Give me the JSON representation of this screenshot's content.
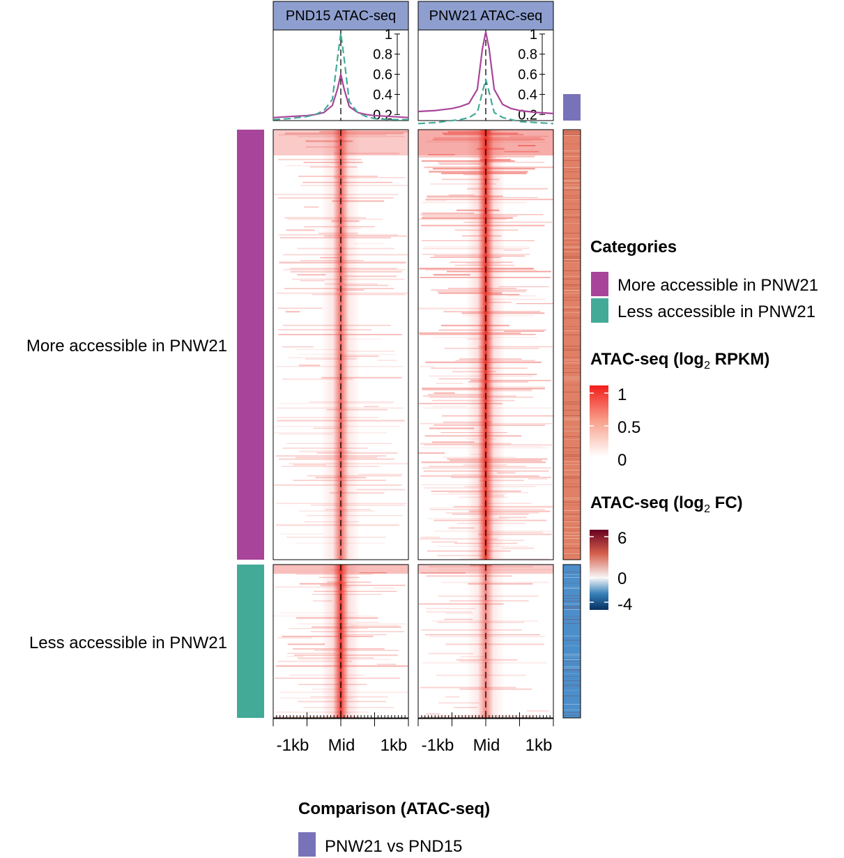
{
  "panels": [
    {
      "title": "PND15 ATAC-seq"
    },
    {
      "title": "PNW21 ATAC-seq"
    }
  ],
  "row_labels": [
    "More accessible in PNW21",
    "Less accessible in PNW21"
  ],
  "x_ticks": [
    "-1kb",
    "Mid",
    "1kb"
  ],
  "legends": {
    "categories": {
      "title": "Categories",
      "items": [
        {
          "label": "More accessible in PNW21",
          "color": "#a8449a"
        },
        {
          "label": "Less accessible in PNW21",
          "color": "#43aa98"
        }
      ]
    },
    "rpkm": {
      "title_main": "ATAC-seq (log",
      "title_sub": "2",
      "title_end": " RPKM)",
      "ticks": [
        "1",
        "0.5",
        "0"
      ]
    },
    "fc": {
      "title_main": "ATAC-seq (log",
      "title_sub": "2",
      "title_end": " FC)",
      "ticks": [
        "6",
        "0",
        "-4"
      ]
    },
    "comparison": {
      "title": "Comparison (ATAC-seq)",
      "items": [
        {
          "label": "PNW21 vs PND15",
          "color": "#7873b8"
        }
      ]
    }
  },
  "colors": {
    "strip_bg": "#8e9fcf",
    "more": "#a8449a",
    "less": "#43aa98",
    "comparison": "#7873b8",
    "fc_up": "#e08066",
    "fc_down": "#4c8ec9",
    "heat": "#e8261c"
  },
  "chart_data": {
    "type": "heatmap",
    "profile": {
      "x": [
        -2,
        -1.5,
        -1,
        -0.75,
        -0.5,
        -0.25,
        -0.1,
        0,
        0.1,
        0.25,
        0.5,
        0.75,
        1,
        1.5,
        2
      ],
      "yticks": [
        "0.2",
        "0.4",
        "0.6",
        "0.8",
        "1"
      ],
      "ylim": [
        0.14,
        1.04
      ],
      "series": [
        {
          "panel": 0,
          "group": "More accessible in PNW21",
          "style": "solid",
          "values": [
            0.17,
            0.18,
            0.19,
            0.2,
            0.22,
            0.29,
            0.45,
            0.6,
            0.45,
            0.28,
            0.22,
            0.2,
            0.19,
            0.18,
            0.17
          ]
        },
        {
          "panel": 0,
          "group": "Less accessible in PNW21",
          "style": "dashed",
          "values": [
            0.15,
            0.16,
            0.18,
            0.2,
            0.24,
            0.35,
            0.75,
            1.01,
            0.75,
            0.33,
            0.22,
            0.18,
            0.16,
            0.15,
            0.15
          ]
        },
        {
          "panel": 1,
          "group": "More accessible in PNW21",
          "style": "solid",
          "values": [
            0.23,
            0.24,
            0.26,
            0.28,
            0.31,
            0.45,
            0.85,
            1.02,
            0.85,
            0.45,
            0.3,
            0.26,
            0.24,
            0.22,
            0.21
          ]
        },
        {
          "panel": 1,
          "group": "Less accessible in PNW21",
          "style": "dashed",
          "values": [
            0.11,
            0.12,
            0.14,
            0.15,
            0.17,
            0.22,
            0.42,
            0.55,
            0.42,
            0.22,
            0.17,
            0.15,
            0.13,
            0.12,
            0.11
          ]
        }
      ]
    },
    "rpkm_range": [
      0,
      1
    ],
    "fc_range": [
      -4,
      6
    ]
  }
}
